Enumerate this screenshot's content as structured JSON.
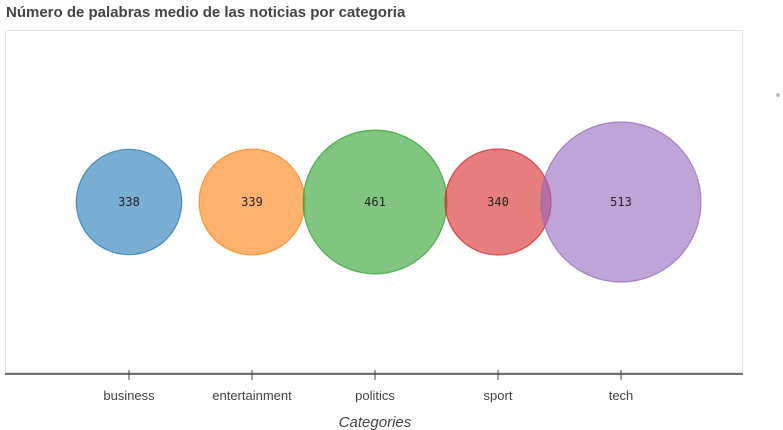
{
  "chart_data": {
    "type": "scatter",
    "title": "Número de palabras medio de las noticias por categoria",
    "xlabel": "Categories",
    "ylabel": "",
    "categories": [
      "business",
      "entertainment",
      "politics",
      "sport",
      "tech"
    ],
    "values": [
      338,
      339,
      461,
      340,
      513
    ],
    "value_labels": [
      "338",
      "339",
      "461",
      "340",
      "513"
    ],
    "colors": [
      "#1f77b4",
      "#ff7f0e",
      "#2ca02c",
      "#d62728",
      "#9467bd"
    ],
    "bubble_opacity": 0.6,
    "grid": false,
    "legend": "none"
  }
}
